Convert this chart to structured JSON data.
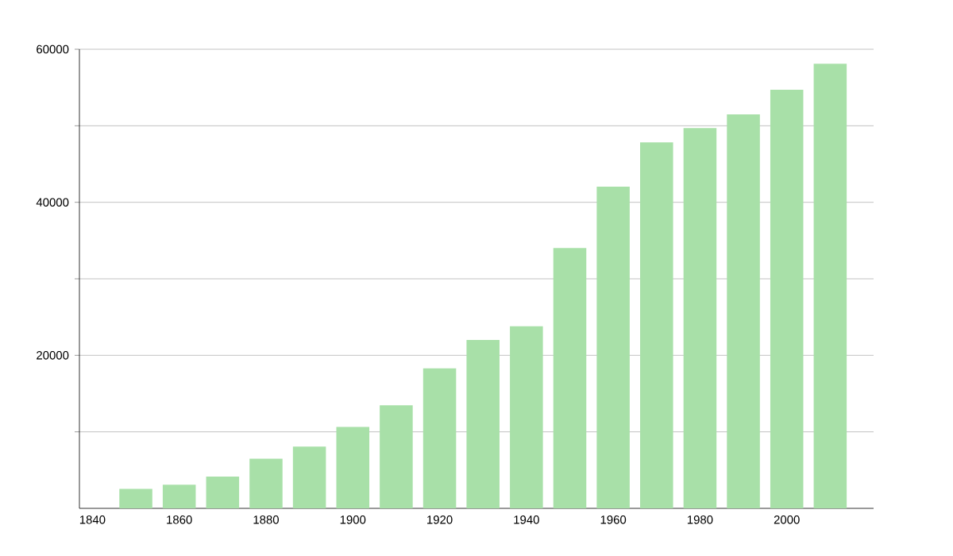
{
  "chart_data": {
    "type": "bar",
    "x": [
      1850,
      1860,
      1870,
      1880,
      1890,
      1900,
      1910,
      1920,
      1930,
      1940,
      1950,
      1960,
      1970,
      1980,
      1990,
      2000,
      2010
    ],
    "values": [
      2550,
      3100,
      4140,
      6490,
      8080,
      10630,
      13460,
      18290,
      22010,
      23800,
      34020,
      42030,
      47830,
      49700,
      51500,
      54720,
      58100
    ],
    "color": "#a8e0a8",
    "xlim": [
      1837,
      2020
    ],
    "xticks": [
      1840,
      1860,
      1880,
      1900,
      1920,
      1940,
      1960,
      1980,
      2000
    ],
    "ylim": [
      0,
      60000
    ],
    "yticks": [
      {
        "value": 10000,
        "label": null
      },
      20000,
      {
        "value": 30000,
        "label": null
      },
      40000,
      {
        "value": 50000,
        "label": null
      },
      60000
    ],
    "grid": "y"
  }
}
